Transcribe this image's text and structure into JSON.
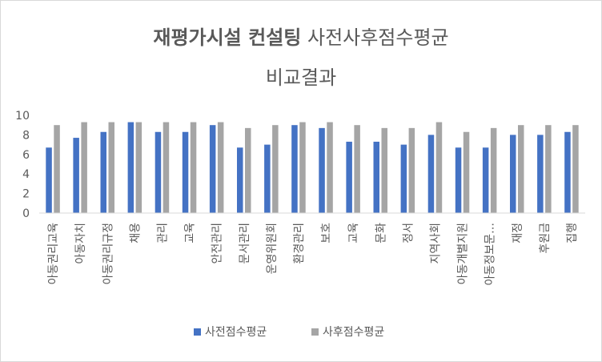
{
  "chart_data": {
    "type": "bar",
    "title_bold": "재평가시설 컨설팅",
    "title_rest": " 사전사후점수평균",
    "title_line2": "비교결과",
    "categories": [
      "아동권리교육",
      "아동자치",
      "아동권리규정",
      "채용",
      "관리",
      "교육",
      "안전관리",
      "문서관리",
      "운영위원회",
      "환경관리",
      "보호",
      "교육",
      "문화",
      "정서",
      "지역사회",
      "아동개별지원",
      "아동정보문…",
      "재정",
      "후원금",
      "집행"
    ],
    "series": [
      {
        "name": "사전점수평균",
        "color": "#4472c4",
        "values": [
          6.7,
          7.7,
          8.3,
          9.3,
          8.3,
          8.3,
          9.0,
          6.7,
          7.0,
          9.0,
          8.7,
          7.3,
          7.3,
          7.0,
          8.0,
          6.7,
          6.7,
          8.0,
          8.0,
          8.3
        ]
      },
      {
        "name": "사후점수평균",
        "color": "#a5a5a5",
        "values": [
          9.0,
          9.3,
          9.3,
          9.3,
          9.3,
          9.3,
          9.3,
          8.7,
          9.0,
          9.3,
          9.3,
          9.0,
          8.7,
          8.7,
          9.3,
          8.3,
          8.7,
          9.0,
          9.0,
          9.0
        ]
      }
    ],
    "y_ticks": [
      "0",
      "2",
      "4",
      "6",
      "8",
      "10"
    ],
    "ylim": [
      0,
      10
    ],
    "grid": false,
    "legend_position": "bottom"
  }
}
